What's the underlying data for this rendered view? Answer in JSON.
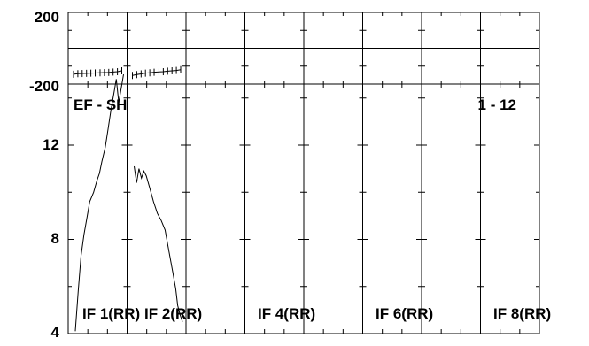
{
  "chart_data": {
    "type": "line",
    "panel_labels": [
      "IF 1(RR)",
      "IF 2(RR)",
      "",
      "IF 4(RR)",
      "",
      "IF 6(RR)",
      "",
      "IF 8(RR)"
    ],
    "corner_labels": {
      "left": "EF - SH",
      "right": "1 - 12"
    },
    "phase": {
      "ylim": [
        -200,
        200
      ],
      "yticks": [
        "200",
        "-200"
      ],
      "series": [
        {
          "panel": 1,
          "x": [
            0.0,
            0.09,
            0.18,
            0.27,
            0.36,
            0.45,
            0.55,
            0.64,
            0.73,
            0.82,
            0.91,
            1.0
          ],
          "y": [
            -145,
            -142,
            -141,
            -140,
            -139,
            -138,
            -137,
            -136,
            -135,
            -133,
            -131,
            -126
          ]
        },
        {
          "panel": 2,
          "x": [
            0.0,
            0.09,
            0.18,
            0.27,
            0.36,
            0.45,
            0.55,
            0.64,
            0.73,
            0.82,
            0.91,
            1.0
          ],
          "y": [
            -152,
            -147,
            -143,
            -139,
            -137,
            -134,
            -132,
            -131,
            -128,
            -126,
            -124,
            -120
          ]
        }
      ]
    },
    "amplitude": {
      "ylim": [
        4,
        15
      ],
      "yticks": [
        "12",
        "8",
        "4"
      ],
      "series": [
        {
          "panel": 1,
          "x": [
            0.0,
            0.06,
            0.12,
            0.18,
            0.24,
            0.3,
            0.38,
            0.45,
            0.5,
            0.55,
            0.62,
            0.68,
            0.74,
            0.8,
            0.85,
            0.9,
            0.95,
            1.0
          ],
          "y": [
            4.1,
            5.8,
            7.3,
            8.2,
            8.9,
            9.6,
            10.0,
            10.5,
            10.8,
            11.3,
            11.9,
            12.7,
            13.5,
            14.2,
            14.8,
            13.8,
            14.4,
            15.0
          ]
        },
        {
          "panel": 2,
          "x": [
            0.0,
            0.05,
            0.1,
            0.15,
            0.2,
            0.25,
            0.32,
            0.4,
            0.48,
            0.56,
            0.64,
            0.72,
            0.8,
            0.86,
            0.9,
            0.95,
            1.0
          ],
          "y": [
            11.1,
            10.4,
            11.0,
            10.6,
            10.9,
            10.7,
            10.2,
            9.6,
            9.1,
            8.8,
            8.4,
            7.5,
            6.6,
            5.9,
            5.2,
            4.8,
            4.5
          ]
        }
      ]
    }
  }
}
